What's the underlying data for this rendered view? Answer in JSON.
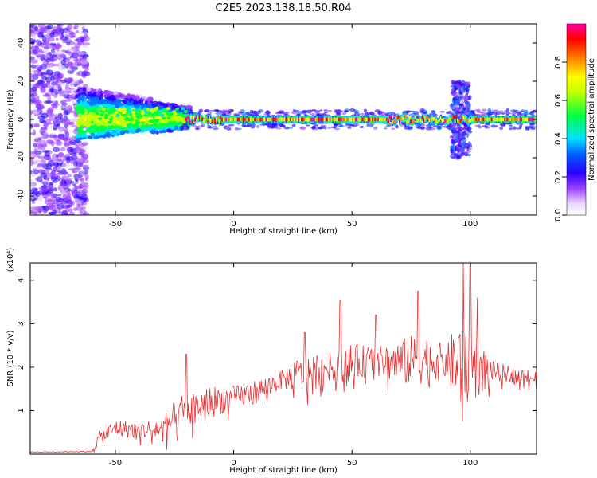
{
  "title": "C2E5.2023.138.18.50.R04",
  "colorbar": {
    "label": "Normalized spectral amplitude",
    "ticks": [
      "0.0",
      "0.2",
      "0.4",
      "0.6",
      "0.8"
    ],
    "colors": [
      "#ffffff",
      "#d0a8f0",
      "#7a00ff",
      "#0000ff",
      "#00ffff",
      "#00ff00",
      "#ffff00",
      "#ff8000",
      "#ff0000",
      "#ff00a0"
    ]
  },
  "chart_data": [
    {
      "type": "heatmap",
      "xlabel": "Height of straight line (km)",
      "ylabel": "Frequency (Hz)",
      "xlim": [
        -86,
        128
      ],
      "ylim": [
        -50,
        50
      ],
      "xticks": [
        -50,
        0,
        50,
        100
      ],
      "yticks": [
        -40,
        -20,
        0,
        20,
        40
      ],
      "colorscale": "rainbow",
      "zlim": [
        0,
        1
      ],
      "description_series": [
        {
          "name": "",
          "x_range": [
            -86,
            -65
          ],
          "spread_hz": 50,
          "amplitude": 0.2
        },
        {
          "name": "",
          "x_range": [
            -65,
            -20
          ],
          "spread_hz": 10,
          "amplitude": 0.55
        },
        {
          "name": "",
          "x_range": [
            -20,
            128
          ],
          "spread_hz": 3,
          "amplitude": 0.95
        }
      ]
    },
    {
      "type": "line",
      "xlabel": "Height of straight line (km)",
      "ylabel": "SNR (10 * v/v)",
      "y_multiplier": "(x10⁴)",
      "xlim": [
        -86,
        128
      ],
      "ylim": [
        0,
        4.4
      ],
      "xticks": [
        -50,
        0,
        50,
        100
      ],
      "yticks": [
        1,
        2,
        3,
        4
      ],
      "color": "#e83030",
      "envelope": {
        "x": [
          -86,
          -60,
          -57,
          -50,
          -40,
          -30,
          -22,
          -15,
          -10,
          0,
          10,
          20,
          30,
          40,
          50,
          60,
          70,
          80,
          90,
          95,
          100,
          110,
          128
        ],
        "y": [
          0.05,
          0.06,
          0.35,
          0.6,
          0.55,
          0.6,
          0.9,
          1.1,
          1.2,
          1.3,
          1.45,
          1.7,
          1.9,
          2.0,
          2.1,
          2.15,
          2.1,
          2.2,
          2.1,
          2.1,
          2.0,
          1.9,
          1.75
        ],
        "amp": [
          0.01,
          0.02,
          0.3,
          0.4,
          0.35,
          0.5,
          0.9,
          0.6,
          0.7,
          0.5,
          0.5,
          0.4,
          0.8,
          0.6,
          0.8,
          0.6,
          1.0,
          1.1,
          0.7,
          2.0,
          1.6,
          0.4,
          0.3
        ]
      },
      "peaks": [
        {
          "x": -20,
          "y": 2.3
        },
        {
          "x": 30,
          "y": 2.8
        },
        {
          "x": 45,
          "y": 3.55
        },
        {
          "x": 60,
          "y": 3.2
        },
        {
          "x": 78,
          "y": 3.75
        },
        {
          "x": 97,
          "y": 4.4
        },
        {
          "x": 100,
          "y": 4.4
        },
        {
          "x": 103,
          "y": 3.6
        }
      ]
    }
  ]
}
